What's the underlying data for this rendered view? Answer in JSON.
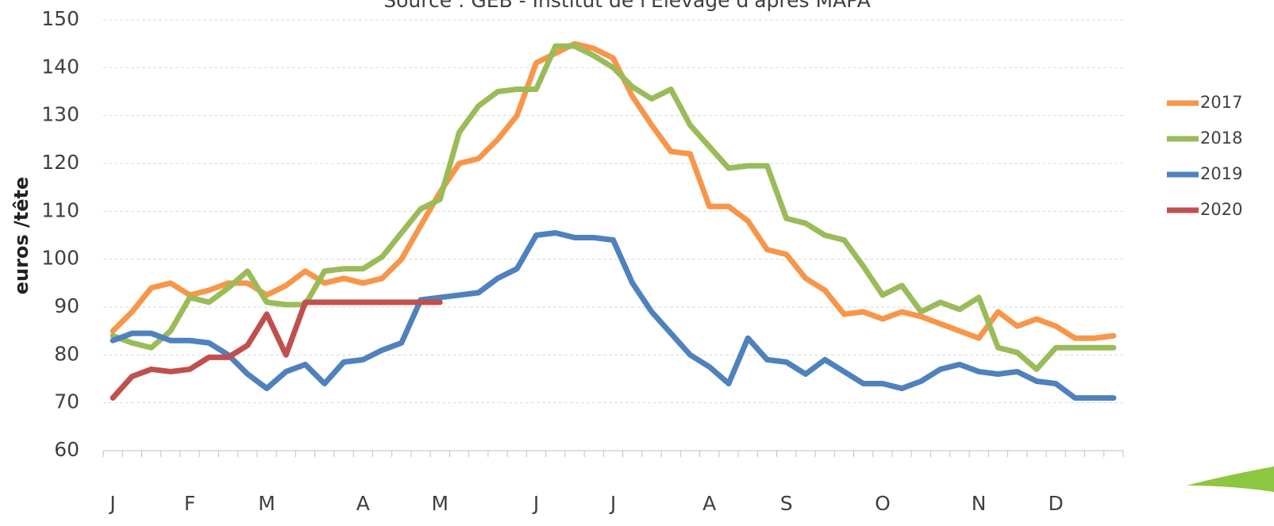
{
  "chart_data": {
    "type": "line",
    "subtitle": "Source : GEB - Institut de l'Elevage d'après MAPA",
    "y_label": "euros /tête",
    "categories": [
      "J",
      null,
      null,
      null,
      "F",
      null,
      null,
      null,
      "M",
      null,
      null,
      null,
      null,
      "A",
      null,
      null,
      null,
      "M",
      null,
      null,
      null,
      null,
      "J",
      null,
      null,
      null,
      "J",
      null,
      null,
      null,
      null,
      "A",
      null,
      null,
      null,
      "S",
      null,
      null,
      null,
      null,
      "O",
      null,
      null,
      null,
      null,
      "N",
      null,
      null,
      null,
      "D",
      null,
      null,
      null
    ],
    "series": [
      {
        "name": "2017",
        "color": "#f7964a",
        "values": [
          85,
          89,
          94,
          95,
          92.5,
          93.5,
          95,
          95,
          92.5,
          94.5,
          97.5,
          95,
          96,
          95,
          96,
          100,
          107,
          114,
          120,
          121,
          125,
          130,
          141,
          143,
          145,
          144,
          142,
          134,
          128,
          122.5,
          122,
          111,
          111,
          108,
          102,
          101,
          96,
          93.5,
          88.5,
          89,
          87.5,
          89,
          88,
          86.5,
          85,
          83.5,
          89,
          86,
          87.5,
          86,
          83.5,
          83.5,
          84
        ]
      },
      {
        "name": "2018",
        "color": "#9bbb59",
        "values": [
          84,
          82.5,
          81.5,
          85,
          92,
          91,
          94,
          97.5,
          91,
          90.5,
          90.5,
          97.5,
          98,
          98,
          100.5,
          105.5,
          110.5,
          112.5,
          126.5,
          132,
          135,
          135.5,
          135.5,
          144.5,
          144.5,
          142.5,
          140,
          136,
          133.5,
          135.5,
          128,
          123.5,
          119,
          119.5,
          119.5,
          108.5,
          107.5,
          105,
          104,
          98.5,
          92.5,
          94.5,
          89,
          91,
          89.5,
          92,
          81.5,
          80.5,
          77,
          81.5,
          81.5,
          81.5,
          81.5
        ]
      },
      {
        "name": "2019",
        "color": "#4f81bd",
        "values": [
          83,
          84.5,
          84.5,
          83,
          83,
          82.5,
          80,
          76,
          73,
          76.5,
          78,
          74,
          78.5,
          79,
          81,
          82.5,
          91.5,
          92,
          92.5,
          93,
          96,
          98,
          105,
          105.5,
          104.5,
          104.5,
          104,
          95,
          89,
          84.5,
          80,
          77.5,
          74,
          83.5,
          79,
          78.5,
          76,
          79,
          76.5,
          74,
          74,
          73,
          74.5,
          77,
          78,
          76.5,
          76,
          76.5,
          74.5,
          74,
          71,
          71,
          71
        ]
      },
      {
        "name": "2020",
        "color": "#c0504d",
        "values": [
          71,
          75.5,
          77,
          76.5,
          77,
          79.5,
          79.5,
          82,
          88.5,
          80,
          91,
          91,
          91,
          91,
          91,
          91,
          91,
          91,
          null,
          null,
          null,
          null,
          null,
          null,
          null,
          null,
          null,
          null,
          null,
          null,
          null,
          null,
          null,
          null,
          null,
          null,
          null,
          null,
          null,
          null,
          null,
          null,
          null,
          null,
          null,
          null,
          null,
          null,
          null,
          null,
          null,
          null,
          null
        ]
      }
    ],
    "ylim": [
      60,
      150
    ],
    "yticks": [
      60,
      70,
      80,
      90,
      100,
      110,
      120,
      130,
      140,
      150
    ],
    "grid": true,
    "legend": "right"
  }
}
